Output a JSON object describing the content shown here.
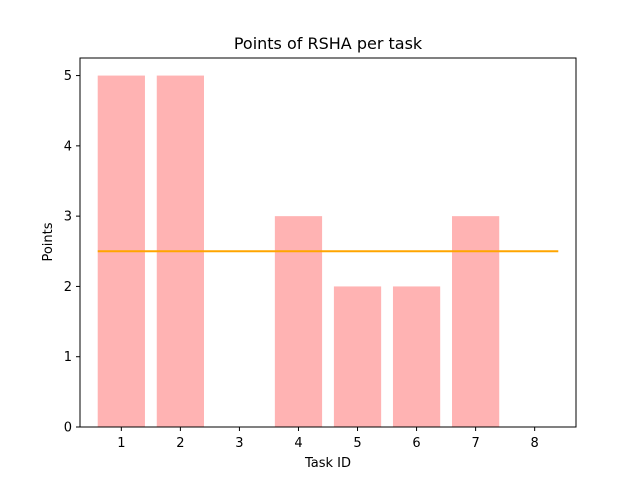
{
  "chart_data": {
    "type": "bar",
    "title": "Points of RSHA per task",
    "xlabel": "Task ID",
    "ylabel": "Points",
    "categories": [
      "1",
      "2",
      "3",
      "4",
      "5",
      "6",
      "7",
      "8"
    ],
    "values": [
      5,
      5,
      0,
      3,
      2,
      2,
      3,
      0
    ],
    "xlim": [
      0.3,
      8.7
    ],
    "ylim": [
      0,
      5.25
    ],
    "yticks": [
      0,
      1,
      2,
      3,
      4,
      5
    ],
    "bar_color": "#ffb3b3",
    "reference_line": {
      "y": 2.5,
      "x_range": [
        0.6,
        8.4
      ],
      "color": "#ffa500"
    },
    "grid": false,
    "legend": "none"
  }
}
